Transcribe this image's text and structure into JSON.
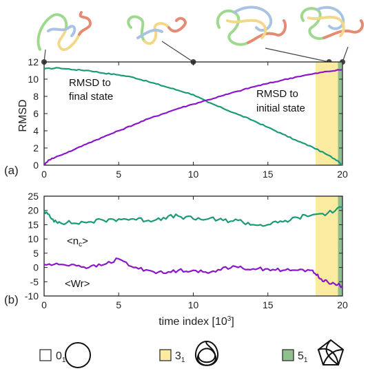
{
  "colors": {
    "green": "#1a9a77",
    "purple": "#8b16c8",
    "band31": "#faeba0",
    "band51": "#8fc08e",
    "axis": "#222222"
  },
  "chart_data": [
    {
      "type": "line",
      "panel_label": "(a)",
      "ylabel": "RMSD",
      "xlim": [
        0,
        20
      ],
      "ylim": [
        0,
        12
      ],
      "xticks": [
        "0",
        "5",
        "10",
        "15",
        "20"
      ],
      "yticks": [
        "0",
        "2",
        "4",
        "6",
        "8",
        "10",
        "12"
      ],
      "bands": [
        {
          "knot": "3_1",
          "from": 18.2,
          "to": 19.7
        },
        {
          "knot": "5_1",
          "from": 19.7,
          "to": 20
        }
      ],
      "top_markers": [
        0,
        10,
        19.1,
        20
      ],
      "annotations": {
        "final_line1": "RMSD to",
        "final_line2": "final state",
        "initial_line1": "RMSD to",
        "initial_line2": "initial state"
      },
      "series": [
        {
          "key": "final",
          "color": "#1a9a77",
          "x": [
            0,
            1,
            2,
            3,
            4,
            5,
            6,
            7,
            8,
            9,
            10,
            11,
            12,
            13,
            14,
            15,
            16,
            17,
            18,
            19,
            19.7,
            20
          ],
          "y": [
            11.2,
            11.3,
            11.1,
            11.0,
            10.7,
            10.5,
            10.2,
            9.7,
            9.2,
            8.7,
            8.2,
            7.3,
            6.6,
            5.9,
            5.2,
            4.4,
            3.6,
            2.8,
            2.1,
            1.2,
            0.5,
            0.0
          ]
        },
        {
          "key": "initial",
          "color": "#8b16c8",
          "x": [
            0,
            0.3,
            1,
            2,
            3,
            4,
            5,
            6,
            7,
            8,
            9,
            10,
            11,
            12,
            13,
            14,
            15,
            16,
            17,
            18,
            19,
            20
          ],
          "y": [
            0.0,
            0.6,
            1.1,
            1.8,
            2.6,
            3.3,
            4.0,
            4.7,
            5.4,
            6.0,
            6.6,
            7.1,
            7.6,
            8.1,
            8.6,
            9.1,
            9.5,
            9.9,
            10.3,
            10.6,
            10.9,
            11.1
          ]
        }
      ]
    },
    {
      "type": "line",
      "panel_label": "(b)",
      "xlabel": "time index [10³]",
      "xlim": [
        0,
        20
      ],
      "ylim": [
        -10,
        25
      ],
      "xticks": [
        "0",
        "5",
        "10",
        "15",
        "20"
      ],
      "yticks": [
        "25",
        "20",
        "15",
        "10",
        "5",
        "0",
        "-5",
        "-10"
      ],
      "annotations": {
        "nc": "<nc>",
        "wr": "<Wr>"
      },
      "series": [
        {
          "key": "nc",
          "color": "#1a9a77",
          "x": [
            0,
            0.5,
            1,
            2,
            3,
            4,
            5,
            6,
            7,
            8,
            9,
            10,
            11,
            12,
            13,
            14,
            15,
            16,
            17,
            18,
            19,
            20
          ],
          "y": [
            20,
            17,
            16,
            15.5,
            16,
            16.5,
            17,
            17,
            16.5,
            17.5,
            18,
            17,
            17,
            16.5,
            16.5,
            15,
            15,
            16,
            17.5,
            18.5,
            19,
            21
          ]
        },
        {
          "key": "wr",
          "color": "#8b16c8",
          "x": [
            0,
            1,
            2,
            3,
            4,
            5,
            6,
            7,
            8,
            9,
            10,
            11,
            12,
            13,
            14,
            15,
            16,
            17,
            18,
            18.5,
            19,
            19.7,
            20
          ],
          "y": [
            1,
            1,
            1,
            0,
            1,
            3,
            0,
            -1,
            -2,
            -1,
            -1,
            -2,
            0,
            0,
            -0.5,
            -0.5,
            -1,
            -1,
            -1,
            -4,
            -5,
            -6,
            -7
          ]
        }
      ]
    }
  ],
  "legend": [
    {
      "symbol": "0",
      "subscript": "1",
      "color": "#ffffff",
      "knot": "unknot"
    },
    {
      "symbol": "3",
      "subscript": "1",
      "color": "#faeba0",
      "knot": "trefoil"
    },
    {
      "symbol": "5",
      "subscript": "1",
      "color": "#8fc08e",
      "knot": "cinquefoil"
    }
  ],
  "thumbnails": [
    "polymer-thumb-1",
    "polymer-thumb-2",
    "polymer-thumb-3",
    "polymer-thumb-4"
  ]
}
